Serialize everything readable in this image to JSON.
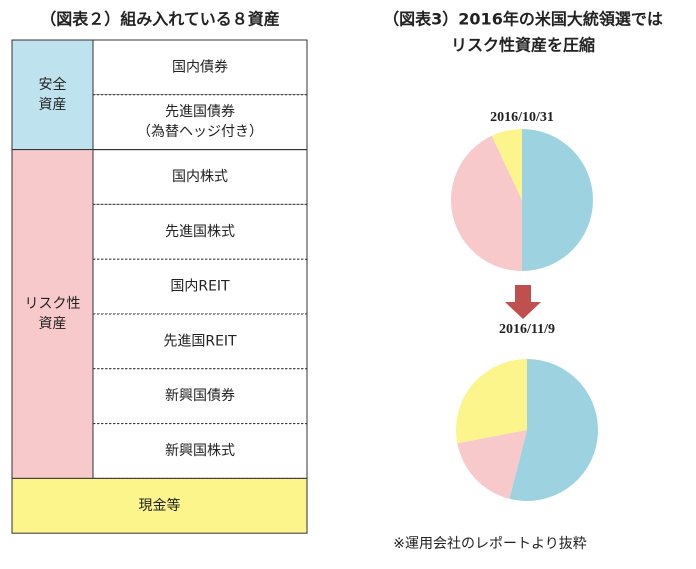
{
  "figure2": {
    "title": "（図表２）組み入れている８資産",
    "groups": [
      {
        "label": [
          "安全",
          "資産"
        ],
        "color": "#bfe3ee",
        "rows": [
          [
            "国内債券"
          ],
          [
            "先進国債券",
            "（為替ヘッジ付き）"
          ]
        ]
      },
      {
        "label": [
          "リスク性",
          "資産"
        ],
        "color": "#f8c9cb",
        "rows": [
          [
            "国内株式"
          ],
          [
            "先進国株式"
          ],
          [
            "国内REIT"
          ],
          [
            "先進国REIT"
          ],
          [
            "新興国債券"
          ],
          [
            "新興国株式"
          ]
        ]
      }
    ],
    "cash": {
      "label": "現金等",
      "color": "#fbf58c"
    }
  },
  "figure3": {
    "title": [
      "（図表3）2016年の米国大統領選では",
      "リスク性資産を圧縮"
    ],
    "note": "※運用会社のレポートより抜粋"
  },
  "chart_data": [
    {
      "type": "pie",
      "title": "2016/10/31",
      "categories": [
        null,
        null,
        null
      ],
      "values": [
        50,
        43,
        7
      ],
      "colors": [
        "#9dd3e0",
        "#f7c9cb",
        "#fbf58c"
      ]
    },
    {
      "type": "pie",
      "title": "2016/11/9",
      "categories": [
        null,
        null,
        null
      ],
      "values": [
        54,
        18,
        28
      ],
      "colors": [
        "#9dd3e0",
        "#f7c9cb",
        "#fbf58c"
      ]
    }
  ]
}
